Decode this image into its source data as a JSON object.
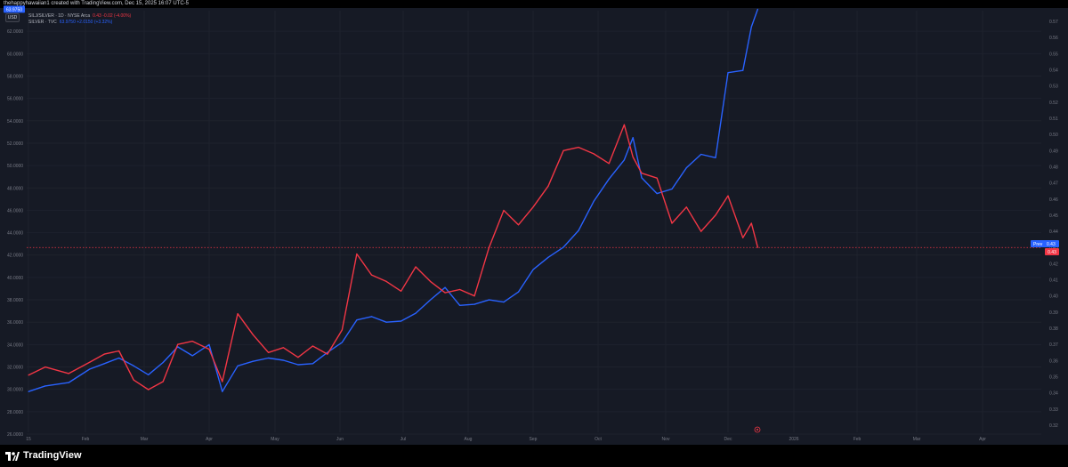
{
  "header": {
    "credit": "thehappyhawaiian1 created with TradingView.com, Dec 15, 2025 16:07 UTC-5"
  },
  "legend": {
    "series1": {
      "name": "SILJ/SILVER · 1D · NYSE Arca",
      "values": "0.43 -0.02 (-4.00%)"
    },
    "series2": {
      "name": "SILVER · TVC",
      "values": "63.9750 +2.0150 (+3.32%)"
    }
  },
  "currency_button": "USD",
  "footer": {
    "brand": "TradingView"
  },
  "colors": {
    "silj_silver": "#f23645",
    "silver": "#2962ff",
    "background": "#161a25",
    "grid": "#1e222d",
    "axis_text": "#787b86"
  },
  "chart_data": {
    "type": "line",
    "x_tick_labels": [
      "15",
      "Feb",
      "Mar",
      "Apr",
      "May",
      "Jun",
      "Jul",
      "Aug",
      "Sep",
      "Oct",
      "Nov",
      "Dec",
      "2026",
      "Feb",
      "Mar",
      "Apr"
    ],
    "left_axis": {
      "ticks": [
        "26.0000",
        "28.0000",
        "30.0000",
        "32.0000",
        "34.0000",
        "36.0000",
        "38.0000",
        "40.0000",
        "42.0000",
        "44.0000",
        "46.0000",
        "48.0000",
        "50.0000",
        "52.0000",
        "54.0000",
        "56.0000",
        "58.0000",
        "60.0000",
        "62.0000"
      ],
      "range": [
        26,
        64
      ],
      "last_value_label": "63.9750"
    },
    "right_axis": {
      "ticks": [
        "0.32",
        "0.33",
        "0.34",
        "0.35",
        "0.36",
        "0.37",
        "0.38",
        "0.39",
        "0.40",
        "0.41",
        "0.42",
        "0.43",
        "0.44",
        "0.45",
        "0.46",
        "0.47",
        "0.48",
        "0.49",
        "0.50",
        "0.51",
        "0.52",
        "0.53",
        "0.54",
        "0.55",
        "0.56",
        "0.57"
      ],
      "range": [
        0.32,
        0.57
      ],
      "price_line_value": 0.43,
      "last_value_label": "0.43",
      "prev_close_label": "Prev",
      "prev_close_value": "0.43"
    },
    "series": [
      {
        "name": "SILVER · TVC",
        "axis": "left",
        "color": "#2962ff",
        "points": [
          [
            "Jan 15",
            29.8
          ],
          [
            "Jan 20",
            30.3
          ],
          [
            "Jan 27",
            30.6
          ],
          [
            "Feb 3",
            31.8
          ],
          [
            "Feb 10",
            32.3
          ],
          [
            "Feb 17",
            32.8
          ],
          [
            "Feb 24",
            32.1
          ],
          [
            "Mar 3",
            31.3
          ],
          [
            "Mar 10",
            32.4
          ],
          [
            "Mar 17",
            33.8
          ],
          [
            "Mar 24",
            33.0
          ],
          [
            "Apr 1",
            34.0
          ],
          [
            "Apr 7",
            29.8
          ],
          [
            "Apr 14",
            32.1
          ],
          [
            "Apr 21",
            32.5
          ],
          [
            "Apr 28",
            32.8
          ],
          [
            "May 5",
            32.6
          ],
          [
            "May 12",
            32.2
          ],
          [
            "May 19",
            32.3
          ],
          [
            "May 26",
            33.3
          ],
          [
            "Jun 2",
            34.2
          ],
          [
            "Jun 9",
            36.2
          ],
          [
            "Jun 16",
            36.5
          ],
          [
            "Jun 23",
            36.0
          ],
          [
            "Jun 30",
            36.1
          ],
          [
            "Jul 7",
            36.8
          ],
          [
            "Jul 14",
            38.0
          ],
          [
            "Jul 21",
            39.1
          ],
          [
            "Jul 28",
            37.5
          ],
          [
            "Aug 4",
            37.6
          ],
          [
            "Aug 11",
            38.0
          ],
          [
            "Aug 18",
            37.8
          ],
          [
            "Aug 25",
            38.7
          ],
          [
            "Sep 1",
            40.7
          ],
          [
            "Sep 8",
            41.8
          ],
          [
            "Sep 15",
            42.7
          ],
          [
            "Sep 22",
            44.2
          ],
          [
            "Sep 29",
            46.8
          ],
          [
            "Oct 6",
            48.8
          ],
          [
            "Oct 13",
            50.5
          ],
          [
            "Oct 17",
            52.5
          ],
          [
            "Oct 21",
            48.9
          ],
          [
            "Oct 28",
            47.5
          ],
          [
            "Nov 4",
            47.9
          ],
          [
            "Nov 11",
            49.8
          ],
          [
            "Nov 18",
            51.0
          ],
          [
            "Nov 25",
            50.7
          ],
          [
            "Dec 1",
            58.3
          ],
          [
            "Dec 8",
            58.5
          ],
          [
            "Dec 12",
            62.4
          ],
          [
            "Dec 15",
            63.975
          ]
        ]
      },
      {
        "name": "SILJ/SILVER · 1D · NYSE Arca",
        "axis": "right",
        "color": "#f23645",
        "points": [
          [
            "Jan 15",
            0.351
          ],
          [
            "Jan 20",
            0.356
          ],
          [
            "Jan 27",
            0.352
          ],
          [
            "Feb 3",
            0.359
          ],
          [
            "Feb 10",
            0.364
          ],
          [
            "Feb 17",
            0.366
          ],
          [
            "Feb 24",
            0.348
          ],
          [
            "Mar 3",
            0.342
          ],
          [
            "Mar 10",
            0.347
          ],
          [
            "Mar 17",
            0.37
          ],
          [
            "Mar 24",
            0.372
          ],
          [
            "Apr 1",
            0.367
          ],
          [
            "Apr 7",
            0.347
          ],
          [
            "Apr 14",
            0.389
          ],
          [
            "Apr 21",
            0.376
          ],
          [
            "Apr 28",
            0.365
          ],
          [
            "May 5",
            0.368
          ],
          [
            "May 12",
            0.362
          ],
          [
            "May 19",
            0.369
          ],
          [
            "May 26",
            0.364
          ],
          [
            "Jun 2",
            0.379
          ],
          [
            "Jun 9",
            0.426
          ],
          [
            "Jun 16",
            0.413
          ],
          [
            "Jun 23",
            0.409
          ],
          [
            "Jun 30",
            0.403
          ],
          [
            "Jul 7",
            0.418
          ],
          [
            "Jul 14",
            0.409
          ],
          [
            "Jul 21",
            0.402
          ],
          [
            "Jul 28",
            0.404
          ],
          [
            "Aug 4",
            0.4
          ],
          [
            "Aug 11",
            0.43
          ],
          [
            "Aug 18",
            0.453
          ],
          [
            "Aug 25",
            0.444
          ],
          [
            "Sep 1",
            0.455
          ],
          [
            "Sep 8",
            0.468
          ],
          [
            "Sep 15",
            0.49
          ],
          [
            "Sep 22",
            0.492
          ],
          [
            "Sep 29",
            0.488
          ],
          [
            "Oct 6",
            0.482
          ],
          [
            "Oct 13",
            0.506
          ],
          [
            "Oct 17",
            0.486
          ],
          [
            "Oct 21",
            0.476
          ],
          [
            "Oct 28",
            0.473
          ],
          [
            "Nov 4",
            0.445
          ],
          [
            "Nov 11",
            0.455
          ],
          [
            "Nov 18",
            0.44
          ],
          [
            "Nov 25",
            0.45
          ],
          [
            "Dec 1",
            0.462
          ],
          [
            "Dec 8",
            0.436
          ],
          [
            "Dec 12",
            0.445
          ],
          [
            "Dec 15",
            0.43
          ]
        ]
      }
    ]
  }
}
